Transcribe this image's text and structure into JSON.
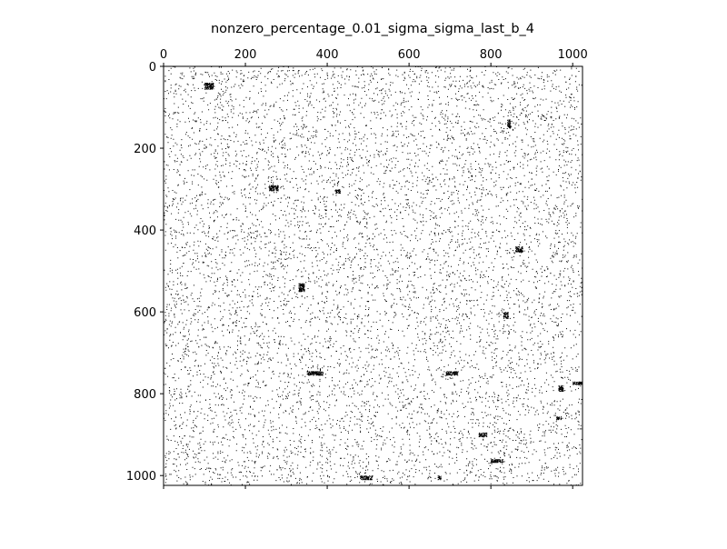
{
  "chart_data": {
    "type": "spy",
    "title": "nonzero_percentage_0.01_sigma_sigma_last_b_4",
    "matrix_shape": [
      1024,
      1024
    ],
    "nonzero_fraction": 0.01,
    "xlim": [
      0,
      1024
    ],
    "ylim": [
      0,
      1024
    ],
    "x_ticks": [
      0,
      200,
      400,
      600,
      800,
      1000
    ],
    "x_tick_labels": [
      "0",
      "200",
      "400",
      "600",
      "800",
      "1000"
    ],
    "y_ticks": [
      0,
      200,
      400,
      600,
      800,
      1000
    ],
    "y_tick_labels": [
      "0",
      "200",
      "400",
      "600",
      "800",
      "1000"
    ],
    "x_axis_position": "top",
    "y_axis_orientation": "inverted",
    "marker_color": "#000000",
    "dense_clusters": [
      {
        "row": 40,
        "col": 100,
        "rows": 16,
        "cols": 22
      },
      {
        "row": 290,
        "col": 258,
        "rows": 14,
        "cols": 22
      },
      {
        "row": 300,
        "col": 420,
        "rows": 10,
        "cols": 12
      },
      {
        "row": 745,
        "col": 350,
        "rows": 10,
        "cols": 40
      },
      {
        "row": 745,
        "col": 690,
        "rows": 10,
        "cols": 30
      },
      {
        "row": 770,
        "col": 1000,
        "rows": 8,
        "cols": 24
      },
      {
        "row": 780,
        "col": 965,
        "rows": 14,
        "cols": 12
      },
      {
        "row": 855,
        "col": 960,
        "rows": 8,
        "cols": 12
      },
      {
        "row": 895,
        "col": 770,
        "rows": 10,
        "cols": 20
      },
      {
        "row": 960,
        "col": 800,
        "rows": 8,
        "cols": 30
      },
      {
        "row": 1000,
        "col": 480,
        "rows": 10,
        "cols": 30
      },
      {
        "row": 1000,
        "col": 670,
        "rows": 10,
        "cols": 8
      },
      {
        "row": 600,
        "col": 830,
        "rows": 16,
        "cols": 12
      },
      {
        "row": 440,
        "col": 860,
        "rows": 14,
        "cols": 18
      },
      {
        "row": 130,
        "col": 840,
        "rows": 20,
        "cols": 8
      },
      {
        "row": 530,
        "col": 330,
        "rows": 20,
        "cols": 14
      }
    ]
  }
}
